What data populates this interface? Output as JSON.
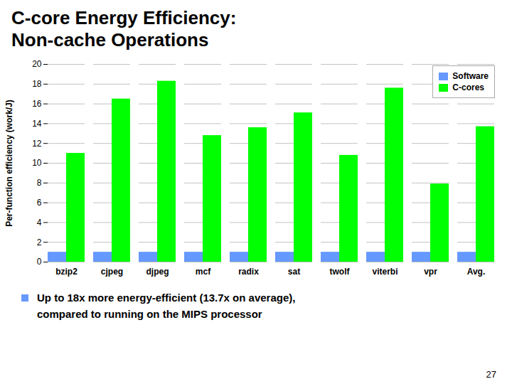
{
  "chart_data": {
    "type": "bar",
    "title": "C-core Energy Efficiency:",
    "subtitle": "Non-cache Operations",
    "categories": [
      "bzip2",
      "cjpeg",
      "djpeg",
      "mcf",
      "radix",
      "sat",
      "twolf",
      "viterbi",
      "vpr",
      "Avg."
    ],
    "series": [
      {
        "name": "Software",
        "color": "#6699FF",
        "values": [
          1.0,
          1.0,
          1.0,
          1.0,
          1.0,
          1.0,
          1.0,
          1.0,
          1.0,
          1.0
        ]
      },
      {
        "name": "C-cores",
        "color": "#00FF00",
        "values": [
          11.0,
          16.5,
          18.3,
          12.8,
          13.6,
          15.1,
          10.8,
          17.6,
          7.9,
          13.7
        ]
      }
    ],
    "ylabel": "Per-function efficiency (work/J)",
    "ylim": [
      0,
      20
    ],
    "yticks": [
      0,
      2,
      4,
      6,
      8,
      10,
      12,
      14,
      16,
      18,
      20
    ],
    "grid": true,
    "legend": "upper right",
    "annotations": [
      "Up to 18x more energy-efficient (13.7x on average),",
      "compared to running on the MIPS processor",
      "27"
    ]
  }
}
